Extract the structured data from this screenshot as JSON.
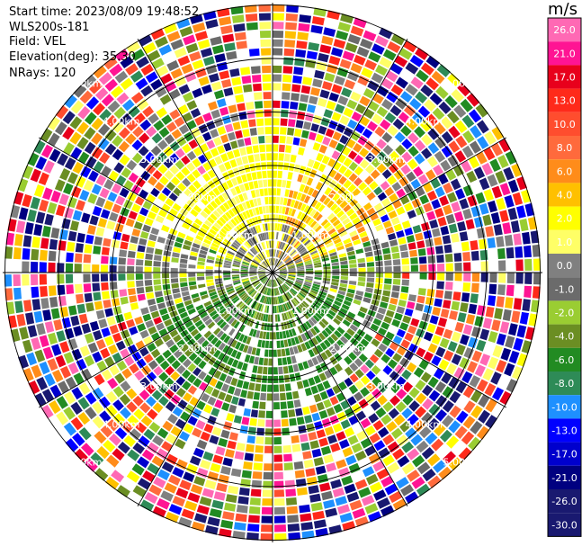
{
  "header": {
    "start_time": "Start time: 2023/08/09 19:48:52",
    "instrument": "WLS200s-181",
    "field": "Field: VEL",
    "elevation": "Elevation(deg): 35.30",
    "nrays": "NRays: 120"
  },
  "ring_labels": [
    "1.00km",
    "2.00km",
    "3.00km",
    "4.00km",
    "5.00km"
  ],
  "colorbar": {
    "unit": "m/s",
    "entries": [
      {
        "label": "26.0",
        "color": "#ff69b4"
      },
      {
        "label": "21.0",
        "color": "#ff1493"
      },
      {
        "label": "17.0",
        "color": "#e8001c"
      },
      {
        "label": "13.0",
        "color": "#ff2a1a"
      },
      {
        "label": "10.0",
        "color": "#ff4d2e"
      },
      {
        "label": "8.0",
        "color": "#ff6a3c"
      },
      {
        "label": "6.0",
        "color": "#ff8c1a"
      },
      {
        "label": "4.0",
        "color": "#ffc000"
      },
      {
        "label": "2.0",
        "color": "#ffff00"
      },
      {
        "label": "1.0",
        "color": "#ffff66"
      },
      {
        "label": "0.0",
        "color": "#808080"
      },
      {
        "label": "-1.0",
        "color": "#6b6b6b"
      },
      {
        "label": "-2.0",
        "color": "#9acd32"
      },
      {
        "label": "-4.0",
        "color": "#6b8e23"
      },
      {
        "label": "-6.0",
        "color": "#228b22"
      },
      {
        "label": "-8.0",
        "color": "#2e8b57"
      },
      {
        "label": "-10.0",
        "color": "#1e90ff"
      },
      {
        "label": "-13.0",
        "color": "#0000ff"
      },
      {
        "label": "-17.0",
        "color": "#0000cd"
      },
      {
        "label": "-21.0",
        "color": "#000080"
      },
      {
        "label": "-26.0",
        "color": "#191970"
      },
      {
        "label": "-30.0",
        "color": "#191970"
      }
    ]
  }
}
